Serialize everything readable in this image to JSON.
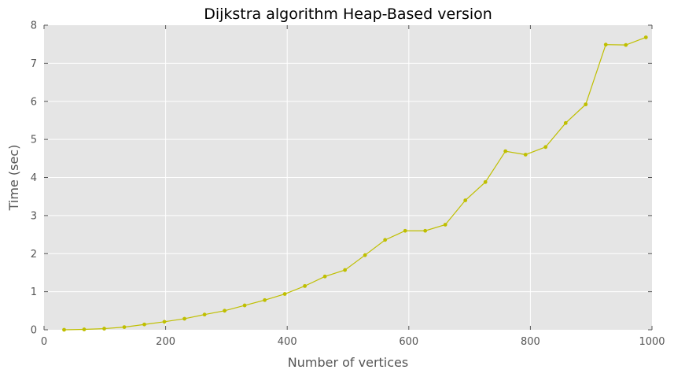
{
  "chart_data": {
    "type": "line",
    "title": "Dijkstra algorithm Heap-Based version",
    "xlabel": "Number of vertices",
    "ylabel": "Time (sec)",
    "xlim": [
      0,
      1000
    ],
    "ylim": [
      0,
      8
    ],
    "xticks": [
      0,
      200,
      400,
      600,
      800,
      1000
    ],
    "yticks": [
      0,
      1,
      2,
      3,
      4,
      5,
      6,
      7,
      8
    ],
    "grid": true,
    "colors": {
      "background": "#e5e5e5",
      "grid": "#ffffff",
      "line": "#bfbf00"
    },
    "series": [
      {
        "x": [
          33,
          66,
          99,
          132,
          165,
          198,
          231,
          264,
          297,
          330,
          363,
          396,
          429,
          462,
          495,
          528,
          561,
          594,
          627,
          660,
          693,
          726,
          759,
          792,
          825,
          858,
          891,
          924,
          957,
          990
        ],
        "values": [
          0.0,
          0.01,
          0.03,
          0.07,
          0.14,
          0.21,
          0.29,
          0.4,
          0.5,
          0.64,
          0.78,
          0.94,
          1.15,
          1.4,
          1.57,
          1.96,
          2.36,
          2.6,
          2.6,
          2.76,
          3.4,
          3.88,
          4.69,
          4.6,
          4.8,
          5.43,
          5.92,
          7.49,
          7.48,
          7.68
        ]
      }
    ]
  }
}
